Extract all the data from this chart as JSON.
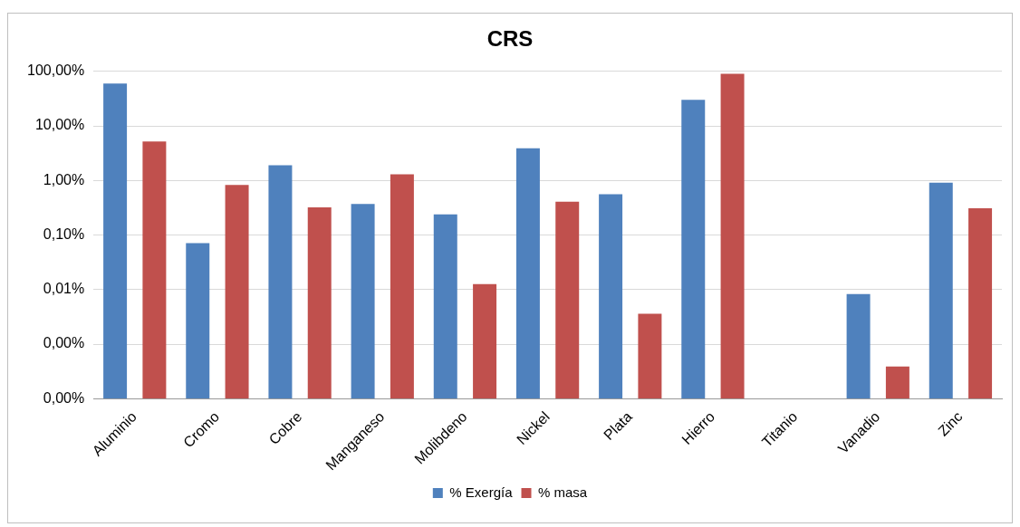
{
  "chart_data": {
    "type": "bar",
    "title": "CRS",
    "categories": [
      "Aluminio",
      "Cromo",
      "Cobre",
      "Manganeso",
      "Molibdeno",
      "Nickel",
      "Plata",
      "Hierro",
      "Titanio",
      "Vanadio",
      "Zinc"
    ],
    "series": [
      {
        "name": "% Exergía",
        "color": "#4f81bd",
        "values": [
          60,
          0.071,
          1.9,
          0.37,
          0.24,
          3.9,
          0.56,
          30,
          null,
          0.0083,
          0.91
        ]
      },
      {
        "name": "% masa",
        "color": "#c0504d",
        "values": [
          5.2,
          0.83,
          0.32,
          1.3,
          0.0126,
          0.41,
          0.0036,
          90,
          null,
          0.00039,
          0.31
        ]
      }
    ],
    "log": "y",
    "ylim": [
      0.0001,
      100
    ],
    "yticks": [
      {
        "value": 0.0001,
        "label": "0,00%"
      },
      {
        "value": 0.001,
        "label": "0,00%"
      },
      {
        "value": 0.01,
        "label": "0,01%"
      },
      {
        "value": 0.1,
        "label": "0,10%"
      },
      {
        "value": 1,
        "label": "1,00%"
      },
      {
        "value": 10,
        "label": "10,00%"
      },
      {
        "value": 100,
        "label": "100,00%"
      }
    ],
    "grid": "y",
    "legend": "bottom"
  }
}
